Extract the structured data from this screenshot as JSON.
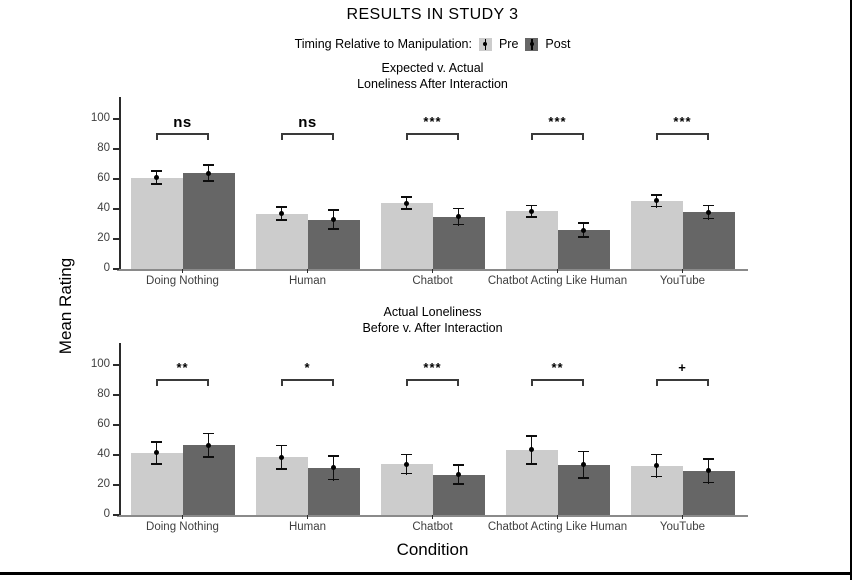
{
  "title": "RESULTS IN STUDY 3",
  "legend": {
    "label": "Timing Relative to Manipulation:",
    "items": [
      {
        "name": "Pre",
        "color": "#cccccc"
      },
      {
        "name": "Post",
        "color": "#666666"
      }
    ]
  },
  "axes": {
    "ylabel": "Mean Rating",
    "xlabel": "Condition"
  },
  "chart_data": [
    {
      "type": "bar",
      "title": [
        "Expected v. Actual",
        "Loneliness After Interaction"
      ],
      "categories": [
        "Doing Nothing",
        "Human",
        "Chatbot",
        "Chatbot Acting Like Human",
        "YouTube"
      ],
      "series": [
        {
          "name": "Pre",
          "color": "#cccccc",
          "values": [
            61,
            37,
            44,
            38.5,
            45.5
          ],
          "error": [
            5,
            5,
            4.5,
            4.5,
            4.5
          ]
        },
        {
          "name": "Post",
          "color": "#666666",
          "values": [
            64,
            33,
            35,
            26,
            38
          ],
          "error": [
            6,
            7,
            6,
            5.5,
            5
          ]
        }
      ],
      "significance": [
        "ns",
        "ns",
        "***",
        "***",
        "***"
      ],
      "ylim": [
        0,
        100
      ],
      "yticks": [
        0,
        20,
        40,
        60,
        80,
        100
      ],
      "grid": false,
      "legend_position": "top"
    },
    {
      "type": "bar",
      "title": [
        "Actual Loneliness",
        "Before v. After Interaction"
      ],
      "categories": [
        "Doing Nothing",
        "Human",
        "Chatbot",
        "Chatbot Acting Like Human",
        "YouTube"
      ],
      "series": [
        {
          "name": "Pre",
          "color": "#cccccc",
          "values": [
            41.5,
            38.5,
            34,
            43.5,
            33
          ],
          "error": [
            8,
            8.5,
            7,
            10,
            8
          ]
        },
        {
          "name": "Post",
          "color": "#666666",
          "values": [
            46.5,
            31.5,
            27,
            33.5,
            29.5
          ],
          "error": [
            8.5,
            8.5,
            7,
            9.5,
            8.5
          ]
        }
      ],
      "significance": [
        "**",
        "*",
        "***",
        "**",
        "+"
      ],
      "ylim": [
        0,
        100
      ],
      "yticks": [
        0,
        20,
        40,
        60,
        80,
        100
      ],
      "grid": false,
      "legend_position": "top"
    }
  ]
}
